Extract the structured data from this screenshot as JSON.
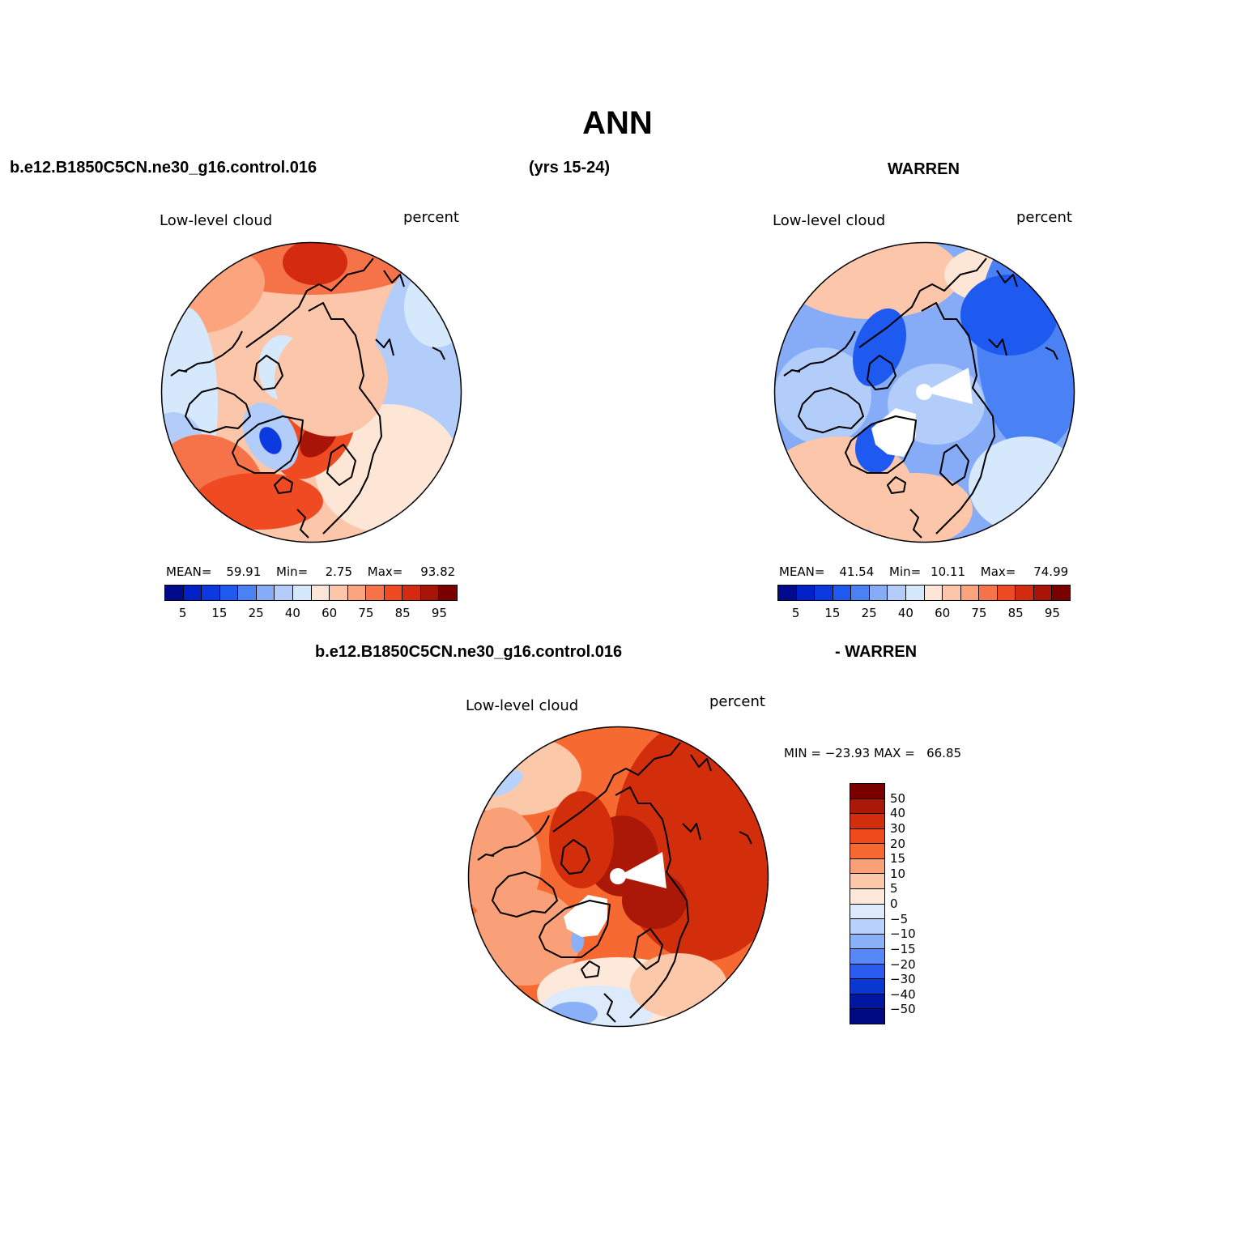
{
  "title": "ANN",
  "header": {
    "model": "b.e12.B1850C5CN.ne30_g16.control.016",
    "years": "(yrs 15-24)",
    "obs": "WARREN",
    "diff_model": "b.e12.B1850C5CN.ne30_g16.control.016",
    "diff_obs": "- WARREN"
  },
  "colors": {
    "abs_scale": [
      "#000a8c",
      "#0020c8",
      "#0a3ae0",
      "#1e5af0",
      "#4a82f6",
      "#86acf8",
      "#b2cdfa",
      "#d6e8fc",
      "#fde6d6",
      "#fcc6aa",
      "#fba47e",
      "#f6734a",
      "#f04a22",
      "#d42a10",
      "#a81408",
      "#7a0000"
    ],
    "diff_scale": [
      "#7a0000",
      "#ac1808",
      "#d22e0c",
      "#ee4a1c",
      "#f66a32",
      "#f9a078",
      "#fcc8aa",
      "#fde8da",
      "#dceafc",
      "#b8d2fc",
      "#8ab0f8",
      "#5888f6",
      "#2a5cf0",
      "#0a36d2",
      "#0018a0",
      "#000a80"
    ]
  },
  "panels": [
    {
      "id": "model",
      "variable": "Low-level cloud",
      "units": "percent",
      "mean_label": "MEAN=",
      "mean": "59.91",
      "min_label": "Min=",
      "min": "2.75",
      "max_label": "Max=",
      "max": "93.82",
      "ticks": [
        "5",
        "15",
        "25",
        "40",
        "60",
        "75",
        "85",
        "95"
      ]
    },
    {
      "id": "obs",
      "variable": "Low-level cloud",
      "units": "percent",
      "mean_label": "MEAN=",
      "mean": "41.54",
      "min_label": "Min=",
      "min": "10.11",
      "max_label": "Max=",
      "max": "74.99",
      "ticks": [
        "5",
        "15",
        "25",
        "40",
        "60",
        "75",
        "85",
        "95"
      ]
    },
    {
      "id": "diff",
      "variable": "Low-level cloud",
      "units": "percent",
      "minmax": "MIN = −23.93 MAX =   66.85",
      "ticks": [
        "50",
        "40",
        "30",
        "20",
        "15",
        "10",
        "5",
        "0",
        "−5",
        "−10",
        "−15",
        "−20",
        "−30",
        "−40",
        "−50"
      ]
    }
  ]
}
